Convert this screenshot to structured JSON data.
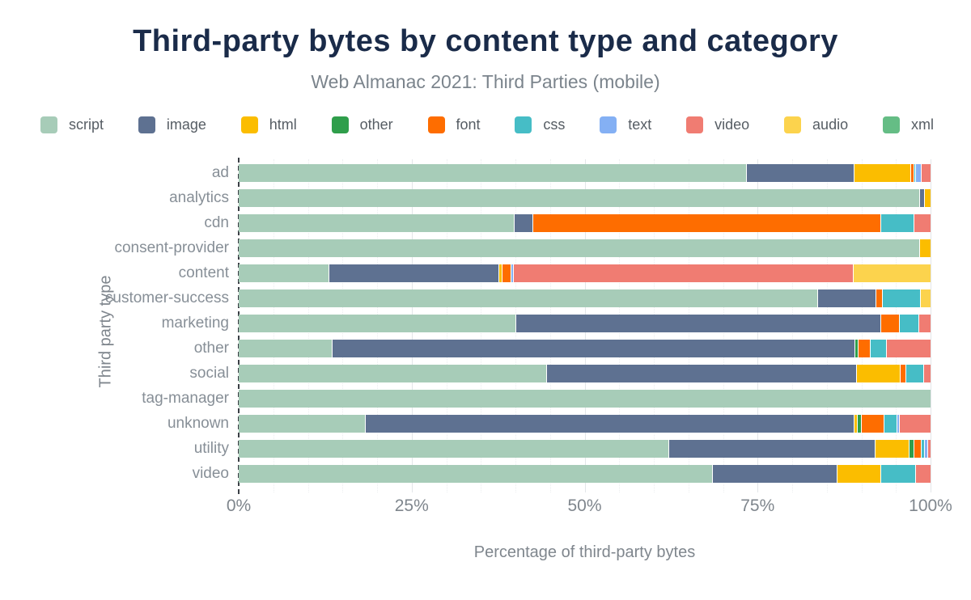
{
  "header": {
    "title": "Third-party bytes by content type and category",
    "subtitle": "Web Almanac 2021: Third Parties (mobile)"
  },
  "axes": {
    "x_title": "Percentage of third-party bytes",
    "y_title": "Third party type"
  },
  "colors": {
    "title_text": "#1a2b49",
    "subtitle_text": "#7b848c",
    "axis_text": "#7f868d",
    "row_label_text": "#878f97",
    "background": "#ffffff"
  },
  "chart_data": {
    "type": "bar",
    "orientation": "horizontal",
    "stacked": true,
    "title": "Third-party bytes by content type and category",
    "subtitle": "Web Almanac 2021: Third Parties (mobile)",
    "xlabel": "Percentage of third-party bytes",
    "ylabel": "Third party type",
    "xlim": [
      0,
      100
    ],
    "x_ticks": [
      {
        "label": "0%",
        "value": 0
      },
      {
        "label": "25%",
        "value": 25
      },
      {
        "label": "50%",
        "value": 50
      },
      {
        "label": "75%",
        "value": 75
      },
      {
        "label": "100%",
        "value": 100
      }
    ],
    "grid": true,
    "legend_position": "top",
    "categories": [
      "ad",
      "analytics",
      "cdn",
      "consent-provider",
      "content",
      "customer-success",
      "marketing",
      "other",
      "social",
      "tag-manager",
      "unknown",
      "utility",
      "video"
    ],
    "series": [
      {
        "name": "script",
        "color": "#a7ccb8",
        "values": [
          73.3,
          98.4,
          39.8,
          98.4,
          13.0,
          83.6,
          40.0,
          13.4,
          44.5,
          100,
          18.2,
          62.1,
          68.4
        ]
      },
      {
        "name": "image",
        "color": "#5e7191",
        "values": [
          15.6,
          0.7,
          2.7,
          0,
          24.5,
          8.4,
          52.8,
          75.6,
          44.7,
          0,
          70.7,
          29.8,
          18.0
        ]
      },
      {
        "name": "html",
        "color": "#fbbd00",
        "values": [
          8.2,
          0.9,
          0,
          1.6,
          0.5,
          0,
          0,
          0,
          6.4,
          0,
          0.4,
          5.0,
          6.3
        ]
      },
      {
        "name": "other",
        "color": "#2f9e4b",
        "values": [
          0,
          0,
          0,
          0,
          0,
          0,
          0,
          0.5,
          0,
          0,
          0.6,
          0.7,
          0
        ]
      },
      {
        "name": "font",
        "color": "#fe6d00",
        "values": [
          0.4,
          0,
          50.3,
          0,
          1.3,
          1.0,
          2.6,
          1.7,
          0.8,
          0,
          3.3,
          1.0,
          0
        ]
      },
      {
        "name": "css",
        "color": "#46bdc6",
        "values": [
          0.3,
          0,
          4.8,
          0,
          0,
          5.5,
          2.9,
          2.4,
          2.5,
          0,
          1.9,
          0.5,
          5.1
        ]
      },
      {
        "name": "text",
        "color": "#84b0f4",
        "values": [
          0.8,
          0,
          0,
          0,
          0.3,
          0,
          0,
          0,
          0,
          0,
          0.4,
          0.4,
          0
        ]
      },
      {
        "name": "video",
        "color": "#f07c72",
        "values": [
          1.4,
          0,
          2.4,
          0,
          49.2,
          0,
          1.7,
          6.4,
          1.1,
          0,
          4.5,
          0.5,
          2.2
        ]
      },
      {
        "name": "audio",
        "color": "#fcd34d",
        "values": [
          0,
          0,
          0,
          0,
          11.2,
          1.5,
          0,
          0,
          0,
          0,
          0,
          0,
          0
        ]
      },
      {
        "name": "xml",
        "color": "#65bd85",
        "values": [
          0,
          0,
          0,
          0,
          0,
          0,
          0,
          0,
          0,
          0,
          0,
          0,
          0
        ]
      }
    ]
  }
}
